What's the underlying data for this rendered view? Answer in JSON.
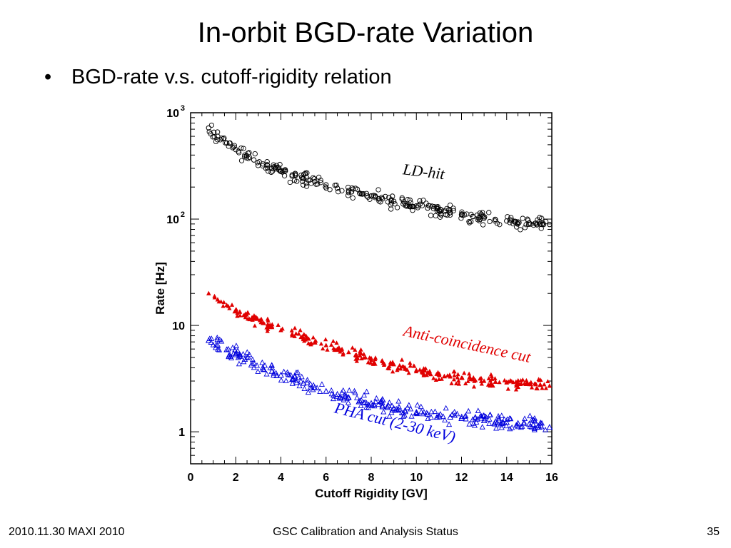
{
  "slide": {
    "title": "In-orbit BGD-rate Variation",
    "bullets": [
      "BGD-rate v.s. cutoff-rigidity relation"
    ]
  },
  "footer": {
    "left": "2010.11.30 MAXI 2010",
    "center": "GSC Calibration and Analysis Status",
    "right": "35"
  },
  "colors": {
    "ldhit": "#000000",
    "anti": "#e00000",
    "pha": "#0000dd"
  },
  "chart_data": {
    "type": "scatter",
    "xlabel": "Cutoff Rigidity [GV]",
    "ylabel": "Rate [Hz]",
    "xlim": [
      0,
      16
    ],
    "ylim": [
      0.5,
      1000
    ],
    "yscale": "log",
    "grid": false,
    "x_ticks": [
      "0",
      "2",
      "4",
      "6",
      "8",
      "10",
      "12",
      "14",
      "16"
    ],
    "y_ticks": [
      {
        "value": 1000,
        "base": "10",
        "exp": "3"
      },
      {
        "value": 100,
        "base": "10",
        "exp": "2"
      },
      {
        "value": 10,
        "base": "10",
        "exp": ""
      },
      {
        "value": 1,
        "base": "1",
        "exp": ""
      }
    ],
    "series": [
      {
        "key": "ldhit",
        "name": "LD-hit",
        "marker": "open-circle",
        "x": [
          0.8,
          1.2,
          1.6,
          2.0,
          2.4,
          2.8,
          3.2,
          3.6,
          4.0,
          4.5,
          5.0,
          5.5,
          6.0,
          6.5,
          7.0,
          7.5,
          8.0,
          8.5,
          9.0,
          9.5,
          10.0,
          10.5,
          11.0,
          11.5,
          12.0,
          12.5,
          13.0,
          13.5,
          14.0,
          14.5,
          15.0,
          15.5,
          15.9
        ],
        "y": [
          720,
          600,
          520,
          450,
          400,
          360,
          330,
          300,
          280,
          260,
          240,
          225,
          210,
          195,
          185,
          175,
          165,
          155,
          147,
          140,
          133,
          127,
          120,
          115,
          110,
          106,
          102,
          99,
          96,
          94,
          92,
          90,
          89
        ]
      },
      {
        "key": "anti",
        "name": "Anti-coincidence cut",
        "marker": "filled-triangle",
        "x": [
          0.8,
          1.2,
          1.6,
          2.0,
          2.4,
          2.8,
          3.2,
          3.6,
          4.0,
          4.5,
          5.0,
          5.5,
          6.0,
          6.5,
          7.0,
          7.5,
          8.0,
          8.5,
          9.0,
          9.5,
          10.0,
          10.5,
          11.0,
          11.5,
          12.0,
          12.5,
          13.0,
          13.5,
          14.0,
          14.5,
          15.0,
          15.5,
          15.9
        ],
        "y": [
          20,
          17.5,
          15.5,
          14,
          12.5,
          11.5,
          10.5,
          9.8,
          9.0,
          8.3,
          7.6,
          7.0,
          6.5,
          6.0,
          5.6,
          5.2,
          4.9,
          4.6,
          4.3,
          4.0,
          3.8,
          3.6,
          3.45,
          3.3,
          3.2,
          3.1,
          3.0,
          2.95,
          2.9,
          2.85,
          2.8,
          2.75,
          2.7
        ]
      },
      {
        "key": "pha",
        "name": "PHA cut (2-30 keV)",
        "marker": "open-triangle",
        "x": [
          0.8,
          1.2,
          1.6,
          2.0,
          2.4,
          2.8,
          3.2,
          3.6,
          4.0,
          4.5,
          5.0,
          5.5,
          6.0,
          6.5,
          7.0,
          7.5,
          8.0,
          8.5,
          9.0,
          9.5,
          10.0,
          10.5,
          11.0,
          11.5,
          12.0,
          12.5,
          13.0,
          13.5,
          14.0,
          14.5,
          15.0,
          15.5,
          15.9
        ],
        "y": [
          7.2,
          6.5,
          5.9,
          5.3,
          4.8,
          4.4,
          4.0,
          3.7,
          3.4,
          3.1,
          2.85,
          2.6,
          2.4,
          2.25,
          2.1,
          1.95,
          1.85,
          1.75,
          1.65,
          1.58,
          1.52,
          1.46,
          1.41,
          1.37,
          1.33,
          1.3,
          1.27,
          1.24,
          1.22,
          1.2,
          1.18,
          1.15,
          1.1
        ]
      }
    ],
    "annotations": [
      {
        "key": "ldhit",
        "text": "LD-hit",
        "x": 10.3,
        "y": 250
      },
      {
        "key": "anti",
        "text": "Anti-coincidence cut",
        "x": 12.2,
        "y": 6.0
      },
      {
        "key": "pha",
        "text": "PHA cut (2-30 keV)",
        "x": 9.0,
        "y": 1.1
      }
    ]
  }
}
